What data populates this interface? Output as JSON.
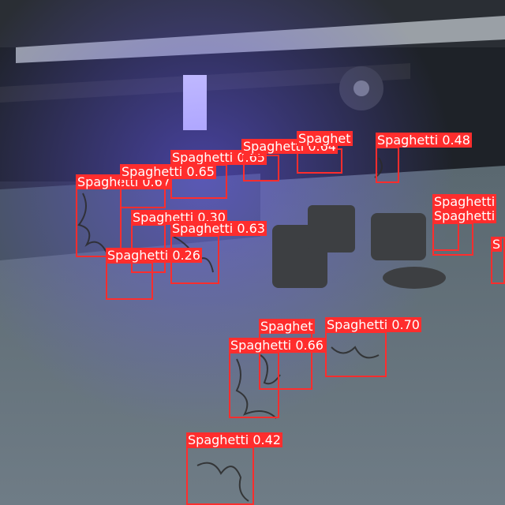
{
  "image": {
    "description_free": true,
    "box_color": "#ff2d2d",
    "label_text_color": "#ffffff"
  },
  "detections": [
    {
      "label": "Spaghetti 0.67"
    },
    {
      "label": "Spaghetti 0.65"
    },
    {
      "label": "Spaghetti 0.65"
    },
    {
      "label": "Spaghetti 0.64"
    },
    {
      "label": "Spaghetti 0.48"
    },
    {
      "label": "Spaghetti 0.30"
    },
    {
      "label": "Spaghetti 0.63"
    },
    {
      "label": "Spaghetti 0.26"
    },
    {
      "label": "Spaghetti 0.70"
    },
    {
      "label": "Spaghetti 0.66"
    },
    {
      "label": "Spaghetti 0.42"
    },
    {
      "label": "Spaghet"
    },
    {
      "label": "Spaghetti"
    },
    {
      "label": "Spaghetti"
    },
    {
      "label": "S"
    }
  ]
}
